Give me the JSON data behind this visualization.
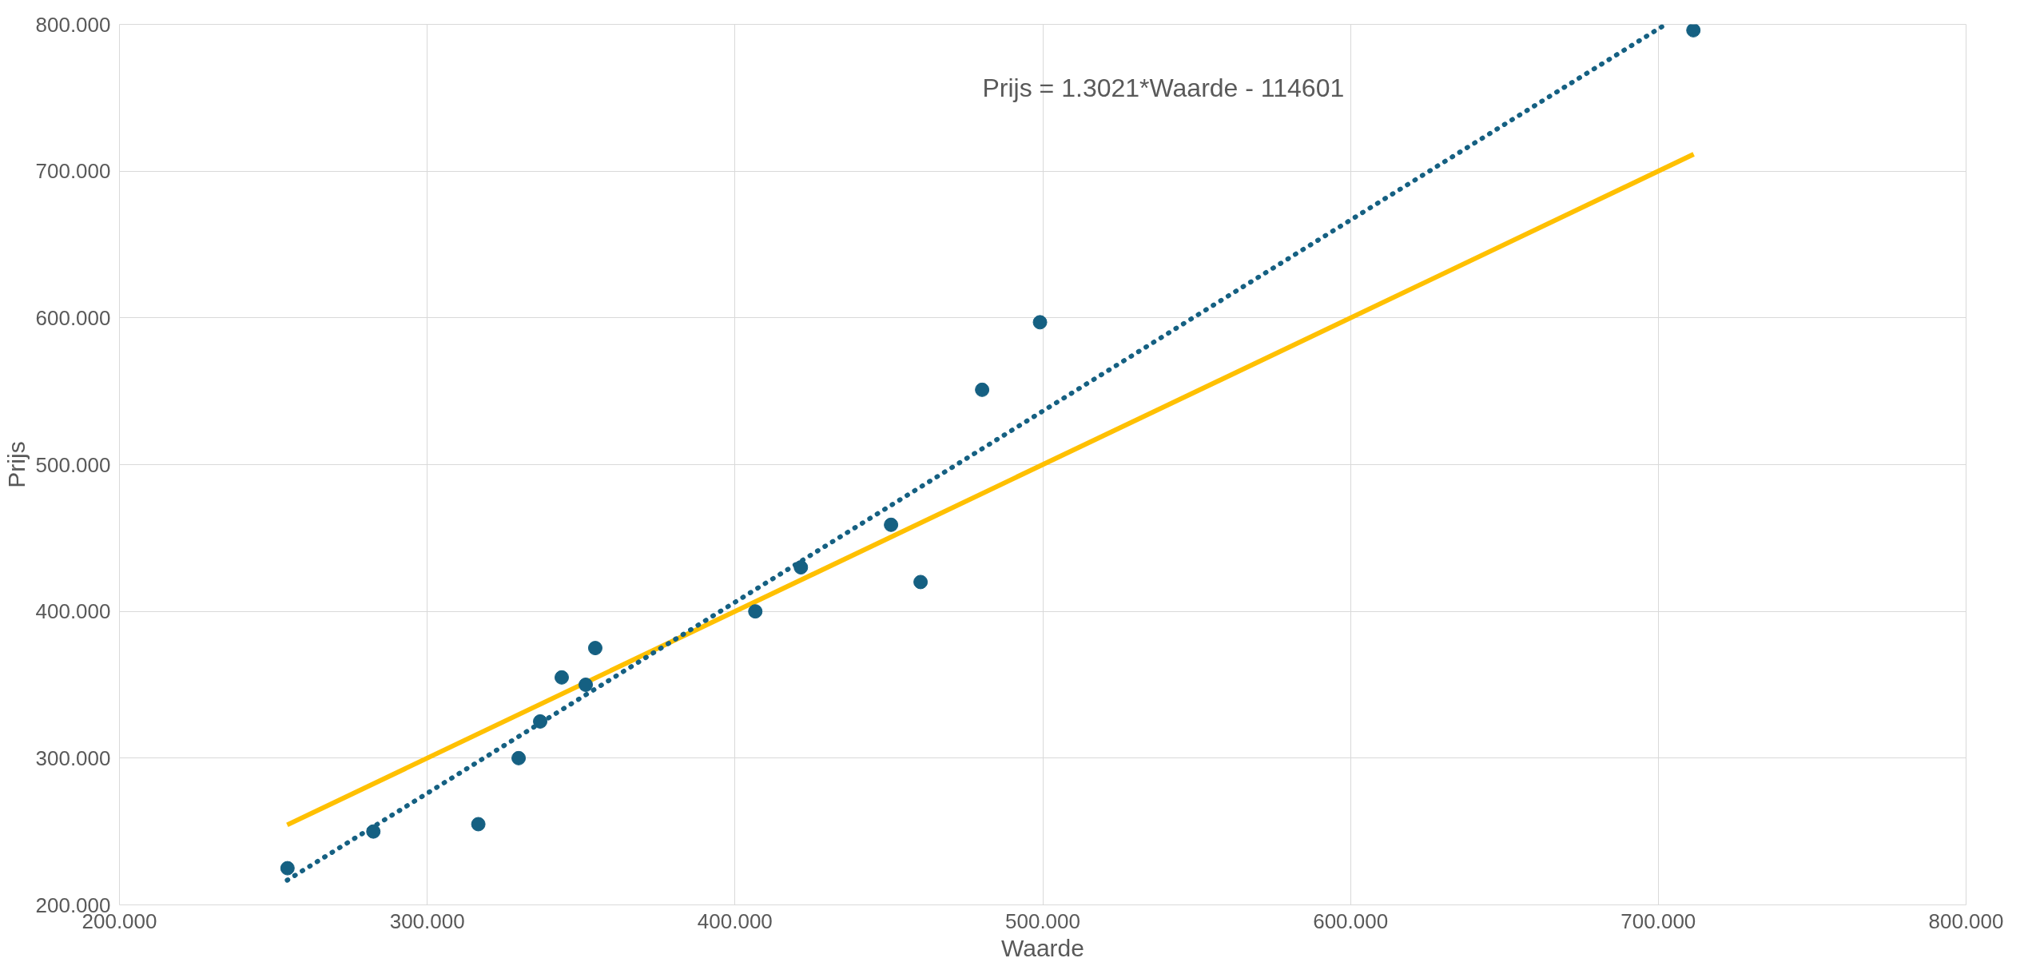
{
  "chart_data": {
    "type": "scatter",
    "xlabel": "Waarde",
    "ylabel": "Prijs",
    "marker": "circle",
    "grid": true,
    "xlim": [
      200000,
      800000
    ],
    "ylim": [
      200000,
      800000
    ],
    "xticks": [
      {
        "value": 200000,
        "label": "200.000"
      },
      {
        "value": 300000,
        "label": "300.000"
      },
      {
        "value": 400000,
        "label": "400.000"
      },
      {
        "value": 500000,
        "label": "500.000"
      },
      {
        "value": 600000,
        "label": "600.000"
      },
      {
        "value": 700000,
        "label": "700.000"
      },
      {
        "value": 800000,
        "label": "800.000"
      }
    ],
    "yticks": [
      {
        "value": 200000,
        "label": "200.000"
      },
      {
        "value": 300000,
        "label": "300.000"
      },
      {
        "value": 400000,
        "label": "400.000"
      },
      {
        "value": 500000,
        "label": "500.000"
      },
      {
        "value": 600000,
        "label": "600.000"
      },
      {
        "value": 700000,
        "label": "700.000"
      },
      {
        "value": 800000,
        "label": "800.000"
      }
    ],
    "annotations": [
      "Prijs = 1.3021*Waarde - 114601"
    ],
    "series": [
      {
        "type": "line",
        "color": "#ffc000",
        "line_style": "solid",
        "marker": "none",
        "x": [
          254500,
          711500
        ],
        "values": [
          254500,
          711500
        ]
      },
      {
        "type": "line",
        "color": "#156082",
        "line_style": "dotted",
        "marker": "none",
        "x": [
          254500,
          702000
        ],
        "values": [
          216800,
          799500
        ]
      },
      {
        "color": "#156082",
        "x": [
          254600,
          282500,
          316600,
          329700,
          336700,
          343700,
          351500,
          354600,
          406600,
          421400,
          450700,
          460300,
          480300,
          499100,
          711400
        ],
        "values": [
          225000,
          250000,
          255000,
          300000,
          325000,
          355000,
          350000,
          375000,
          400000,
          430000,
          459000,
          420000,
          551000,
          597000,
          796000
        ]
      }
    ]
  }
}
